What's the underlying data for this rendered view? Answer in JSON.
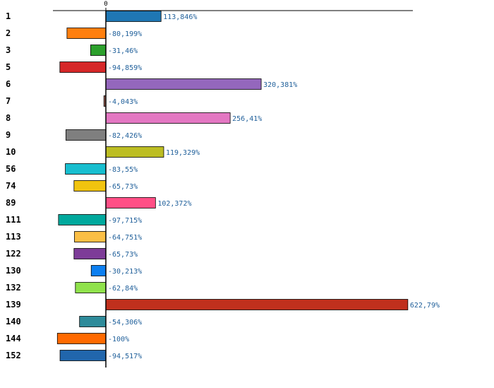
{
  "chart_data": {
    "type": "bar",
    "orientation": "horizontal",
    "title": "",
    "xlabel": "",
    "ylabel": "",
    "xlim": [
      -115,
      580
    ],
    "zero_tick_label": "0",
    "categories": [
      "1",
      "2",
      "3",
      "5",
      "6",
      "7",
      "8",
      "9",
      "10",
      "56",
      "74",
      "89",
      "111",
      "113",
      "122",
      "130",
      "132",
      "139",
      "140",
      "144",
      "152"
    ],
    "values": [
      113.846,
      -80.199,
      -31.46,
      -94.859,
      320.381,
      -4.043,
      256.41,
      -82.426,
      119.329,
      -83.55,
      -65.73,
      102.372,
      -97.715,
      -64.751,
      -65.73,
      -30.213,
      -62.84,
      622.79,
      -54.306,
      -100,
      -94.517
    ],
    "value_labels": [
      "113,846%",
      "-80,199%",
      "-31,46%",
      "-94,859%",
      "320,381%",
      "-4,043%",
      "256,41%",
      "-82,426%",
      "119,329%",
      "-83,55%",
      "-65,73%",
      "102,372%",
      "-97,715%",
      "-64,751%",
      "-65,73%",
      "-30,213%",
      "-62,84%",
      "622,79%",
      "-54,306%",
      "-100%",
      "-94,517%"
    ],
    "colors": [
      "#1f77b4",
      "#ff7f0e",
      "#2ca02c",
      "#d62728",
      "#9467bd",
      "#8c564b",
      "#e377c2",
      "#7f7f7f",
      "#bcbd22",
      "#17becf",
      "#f1c40f",
      "#ff4f86",
      "#00a99d",
      "#fbbf45",
      "#7d3c98",
      "#0d7ff0",
      "#90e24c",
      "#c0301d",
      "#2e8b9a",
      "#ff6a00",
      "#2166ac"
    ],
    "grid": false,
    "legend": "none"
  }
}
